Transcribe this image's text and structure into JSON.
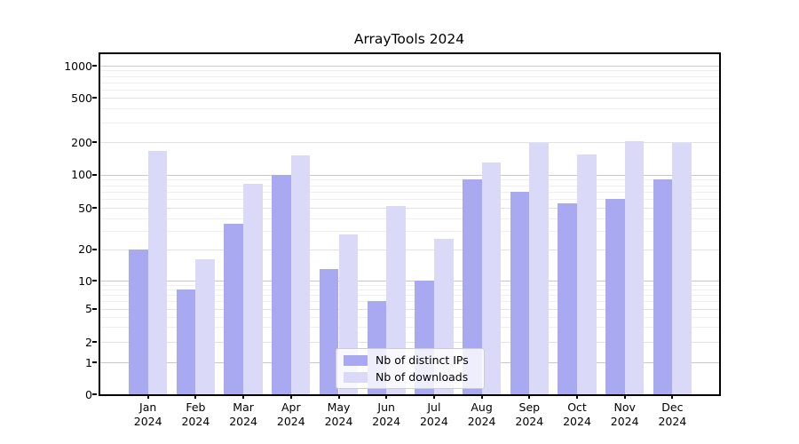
{
  "title": "ArrayTools 2024",
  "legend": {
    "items": [
      {
        "label": "Nb of distinct IPs",
        "color": "#a9a9f1"
      },
      {
        "label": "Nb of downloads",
        "color": "#dadaf8"
      }
    ]
  },
  "chart_data": {
    "type": "bar",
    "title": "ArrayTools 2024",
    "categories": [
      "Jan",
      "Feb",
      "Mar",
      "Apr",
      "May",
      "Jun",
      "Jul",
      "Aug",
      "Sep",
      "Oct",
      "Nov",
      "Dec"
    ],
    "category_year": "2024",
    "series": [
      {
        "name": "Nb of distinct IPs",
        "color": "#a9a9f1",
        "values": [
          20,
          8,
          35,
          100,
          13,
          6,
          10,
          90,
          70,
          55,
          60,
          90
        ]
      },
      {
        "name": "Nb of downloads",
        "color": "#dadaf8",
        "values": [
          165,
          16,
          82,
          150,
          28,
          52,
          25,
          130,
          195,
          155,
          205,
          195
        ]
      }
    ],
    "xlabel": "",
    "ylabel": "",
    "yscale": "symlog",
    "yticks": [
      0,
      1,
      2,
      5,
      10,
      20,
      50,
      100,
      200,
      500,
      1000
    ],
    "ylim": [
      0,
      1350
    ],
    "grid": true,
    "legend_position": "lower center"
  }
}
